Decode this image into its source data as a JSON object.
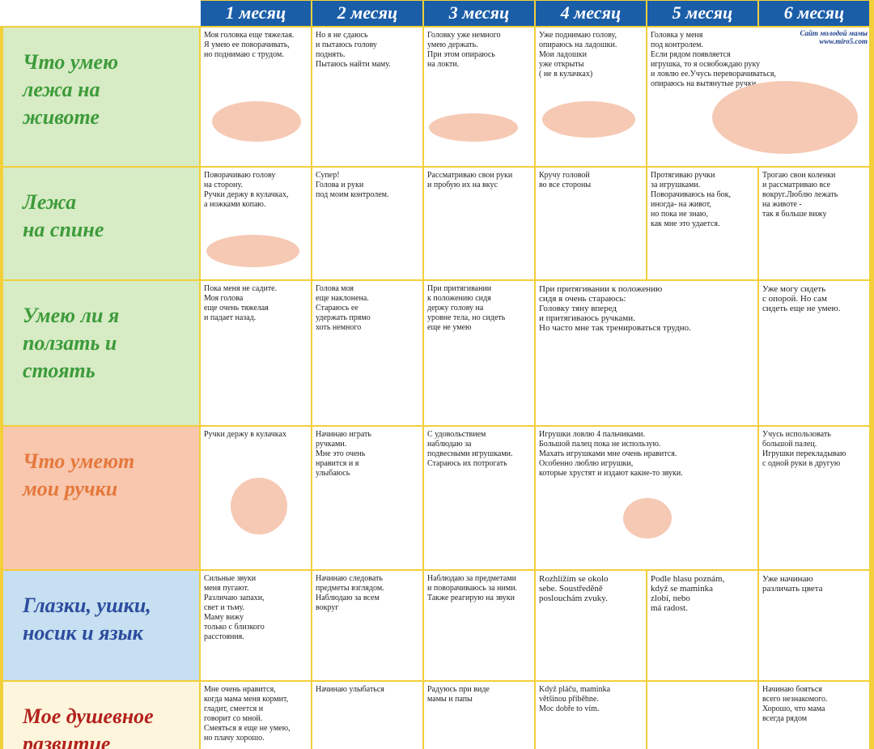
{
  "header": {
    "months": [
      "1 месяц",
      "2 месяц",
      "3 месяц",
      "4 месяц",
      "5 месяц",
      "6 месяц"
    ]
  },
  "logo": {
    "text": "Сайт молодой мамы",
    "url": "www.miro5.com"
  },
  "rows": [
    {
      "label": [
        "Что умею",
        "лежа на",
        "животе"
      ],
      "cells": [
        [
          "Моя головка еще тяжелая.",
          "Я умею ее поворачивать,",
          "но поднимаю с трудом."
        ],
        [
          "Но я не сдаюсь",
          "и пытаюсь голову",
          "поднять.",
          "Пытаюсь найти маму."
        ],
        [
          "Головку уже немного",
          "умею держать.",
          "При этом опираюсь",
          "на локти."
        ],
        [
          "Уже поднимаю голову,",
          "опираюсь на ладошки.",
          "Мои ладошки",
          "уже открыты",
          "( не в кулачках)"
        ],
        [
          "Головка у меня",
          "под контролем.",
          "Если рядом появляется",
          "игрушка, то я освобождаю руку",
          "и ловлю ее.Учусь переворачиваться,",
          "опираюсь на вытянутые ручки"
        ]
      ]
    },
    {
      "label": [
        "Лежа",
        "на спине"
      ],
      "cells": [
        [
          "Поворачиваю голову",
          "на сторону.",
          "Ручки держу в кулачках,",
          "а ножками копаю."
        ],
        [
          "Супер!",
          "Голова и руки",
          "под моим контролем."
        ],
        [
          "Рассматриваю свои руки",
          "и пробую их на вкус"
        ],
        [
          "Кручу головой",
          "во все стороны"
        ],
        [
          "Протягиваю ручки",
          "за игрушками.",
          "Поворачиваюсь на бок,",
          "иногда- на живот,",
          "но пока не знаю,",
          "как мне это удается."
        ],
        [
          "Трогаю свои коленки",
          "и рассматриваю все",
          "вокруг.Люблю лежать",
          "на животе -",
          "так я больше вижу"
        ]
      ]
    },
    {
      "label": [
        "Умею ли я",
        "ползать и",
        "стоять"
      ],
      "cells": [
        [
          "Пока меня не садите.",
          "Моя голова",
          "еще очень тяжелая",
          "и падает назад."
        ],
        [
          "Голова моя",
          "еще наклонена.",
          "Стараюсь ее",
          "удержать прямо",
          "хоть немного"
        ],
        [
          "При притягивании",
          "к положению сидя",
          "держу голову на",
          "уровне тела, но сидеть",
          "еще не умею"
        ],
        [
          "При притягивании к положению",
          "сидя я очень стараюсь:",
          "Головку тяну вперед",
          "и притягиваюсь ручками.",
          "Но часто мне так тренироваться трудно."
        ],
        [
          "Уже могу сидеть",
          "с опорой. Но сам",
          "сидеть еще не умею."
        ]
      ]
    },
    {
      "label": [
        "Что умеют",
        "мои ручки"
      ],
      "cells": [
        [
          "Ручки держу в кулачках"
        ],
        [
          "Начинаю играть",
          "ручками.",
          "Мне это очень",
          "нравится и я",
          "улыбаюсь"
        ],
        [
          "С удовольствием",
          "наблюдаю за",
          "подвесными игрушками.",
          "Стараюсь их потрогать"
        ],
        [
          "Игрушки ловлю 4 пальчиками.",
          "Большой палец пока не использую.",
          "Махать игрушками мне очень нравится.",
          "Особенно люблю игрушки,",
          "которые хрустят и издают какие-то звуки."
        ],
        [
          "Учусь использовать",
          "большой палец.",
          "Игрушки перекладываю",
          "с одной руки в другую"
        ]
      ]
    },
    {
      "label": [
        "Глазки, ушки,",
        "носик и язык"
      ],
      "cells": [
        [
          "Сильные звуки",
          "меня пугают.",
          "Различаю запахи,",
          "свет и тьму.",
          "Маму вижу",
          "только с близкого",
          "расстояния."
        ],
        [
          "Начинаю следовать",
          "предметы взглядом.",
          "Наблюдаю за всем",
          "вокруг"
        ],
        [
          "Наблюдаю за предметами",
          "и поворачиваюсь за ними.",
          "Также реагирую на звуки"
        ],
        [
          "Rozhlížím se okolo",
          "sebe. Soustředěně",
          "poslouchám zvuky."
        ],
        [
          "Podle hlasu poznám,",
          "když se maminka",
          "zlobí, nebo",
          "má radost."
        ],
        [
          "Уже начинаю",
          "различать цвета"
        ]
      ]
    },
    {
      "label": [
        "Мое душевное",
        "развитие"
      ],
      "cells": [
        [
          "Мне очень нравится,",
          "когда мама меня кормит,",
          "гладит, смеется и",
          "говорит со мной.",
          "Смеяться я еще не умею,",
          "но плачу хорошо."
        ],
        [
          "Начинаю улыбаться"
        ],
        [
          "Радуюсь при виде",
          "мамы и папы"
        ],
        [
          "Když pláču, maminka",
          "většinou přiběhne.",
          "Moc dobře to vím."
        ],
        [
          "Начинаю бояться",
          "всего незнакомого.",
          "Хорошо, что мама",
          "всегда рядом"
        ]
      ]
    }
  ]
}
